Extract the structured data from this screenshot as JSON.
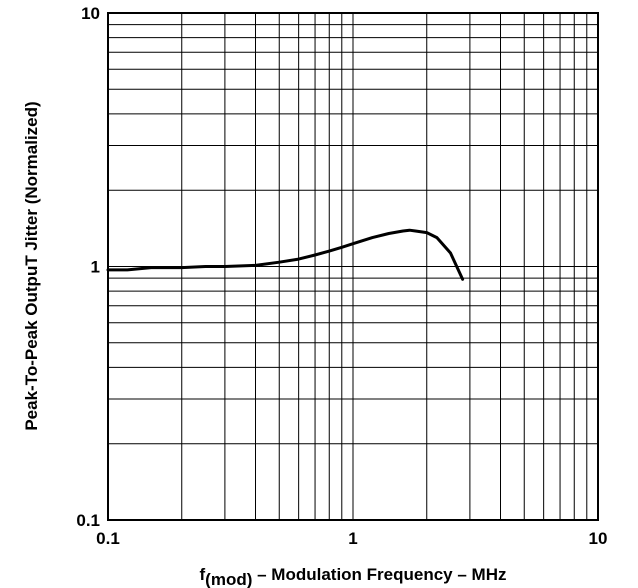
{
  "chart_data": {
    "type": "line",
    "xscale": "log",
    "yscale": "log",
    "xlim": [
      0.1,
      10
    ],
    "ylim": [
      0.1,
      10
    ],
    "grid": true,
    "xlabel_main": "f",
    "xlabel_sub": "(mod)",
    "xlabel_rest": " – Modulation Frequency – MHz",
    "ylabel": "Peak-To-Peak OutpuT Jitter (Normalized)",
    "xticks": [
      {
        "value": 0.1,
        "label": "0.1"
      },
      {
        "value": 1,
        "label": "1"
      },
      {
        "value": 10,
        "label": "10"
      }
    ],
    "yticks": [
      {
        "value": 0.1,
        "label": "0.1"
      },
      {
        "value": 1,
        "label": "1"
      },
      {
        "value": 10,
        "label": "10"
      }
    ],
    "series": [
      {
        "x": [
          0.1,
          0.12,
          0.15,
          0.2,
          0.25,
          0.3,
          0.4,
          0.5,
          0.6,
          0.7,
          0.8,
          0.9,
          1.0,
          1.2,
          1.4,
          1.6,
          1.7,
          1.8,
          2.0,
          2.2,
          2.5,
          2.8
        ],
        "y": [
          0.97,
          0.97,
          0.99,
          0.99,
          1.0,
          1.0,
          1.01,
          1.04,
          1.07,
          1.11,
          1.15,
          1.19,
          1.23,
          1.3,
          1.35,
          1.38,
          1.39,
          1.38,
          1.36,
          1.3,
          1.13,
          0.89
        ]
      }
    ]
  }
}
